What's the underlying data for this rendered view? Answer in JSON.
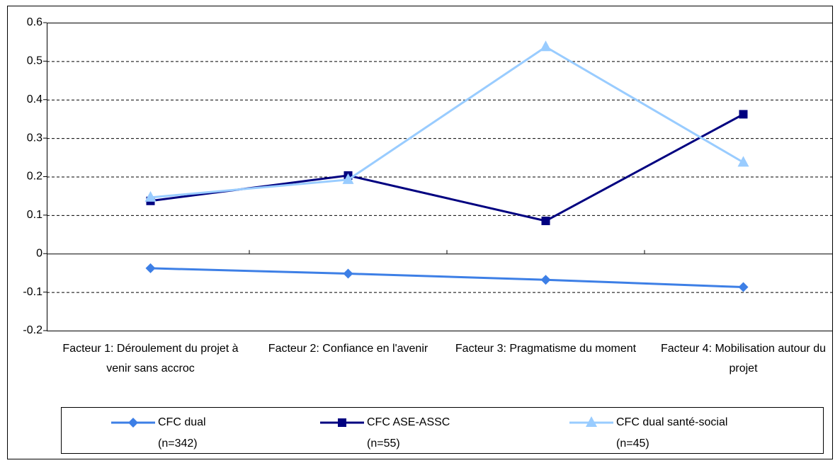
{
  "chart_data": {
    "type": "line",
    "categories": [
      "Facteur 1: Déroulement du projet à venir sans accroc",
      "Facteur 2: Confiance en l'avenir",
      "Facteur 3: Pragmatisme du moment",
      "Facteur 4: Mobilisation autour du projet"
    ],
    "series": [
      {
        "name": "CFC dual",
        "sample": "(n=342)",
        "color": "#3d7fe6",
        "marker": "diamond",
        "values": [
          -0.038,
          -0.052,
          -0.068,
          -0.087
        ]
      },
      {
        "name": "CFC ASE-ASSC",
        "sample": "(n=55)",
        "color": "#000080",
        "marker": "square",
        "values": [
          0.137,
          0.203,
          0.085,
          0.362
        ]
      },
      {
        "name": "CFC dual santé-social",
        "sample": "(n=45)",
        "color": "#99ccff",
        "marker": "triangle",
        "values": [
          0.146,
          0.192,
          0.537,
          0.237
        ]
      }
    ],
    "ylim": [
      -0.2,
      0.6
    ],
    "yticks": [
      -0.2,
      -0.1,
      0,
      0.1,
      0.2,
      0.3,
      0.4,
      0.5,
      0.6
    ],
    "grid": true,
    "legend": "bottom"
  }
}
